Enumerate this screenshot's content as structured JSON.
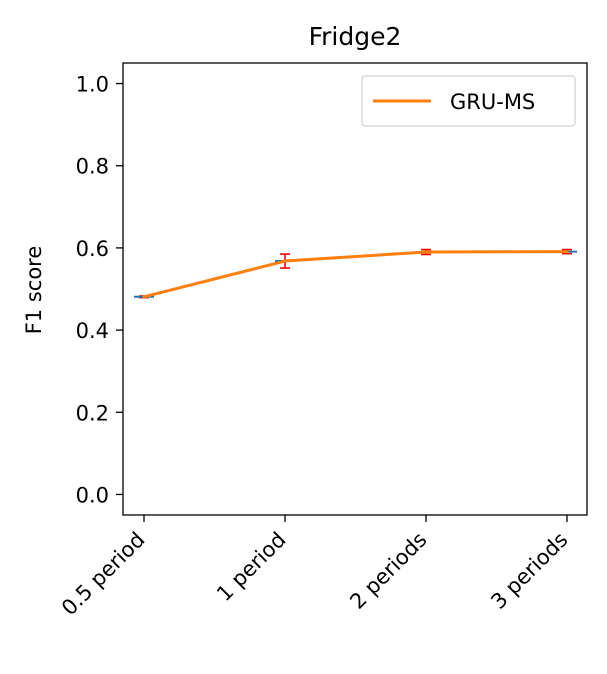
{
  "chart_data": {
    "type": "line",
    "title": "Fridge2",
    "xlabel": "",
    "ylabel": "F1 score",
    "categories": [
      "0.5 period",
      "1 period",
      "2 periods",
      "3 periods"
    ],
    "series": [
      {
        "name": "GRU-MS",
        "values": [
          0.481,
          0.568,
          0.59,
          0.591
        ],
        "errors": [
          0.002,
          0.017,
          0.006,
          0.005
        ],
        "color": "#ff7f0e"
      }
    ],
    "error_bar_color": "#ff0000",
    "marker_color": "#1f77b4",
    "ylim": [
      -0.05,
      1.05
    ],
    "yticks": [
      0.0,
      0.2,
      0.4,
      0.6,
      0.8,
      1.0
    ],
    "ytick_labels": [
      "0.0",
      "0.2",
      "0.4",
      "0.6",
      "0.8",
      "1.0"
    ],
    "grid": false,
    "legend_position": "top-right"
  }
}
